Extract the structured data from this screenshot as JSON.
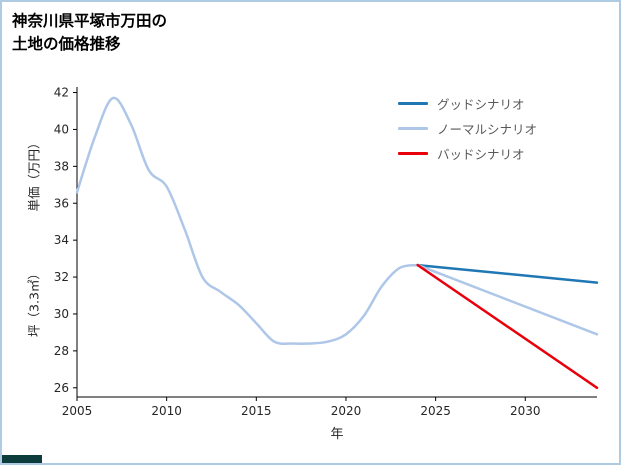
{
  "title": {
    "line1": "神奈川県平塚市万田の",
    "line2": "土地の価格推移"
  },
  "chart_data": {
    "type": "line",
    "title": "神奈川県平塚市万田の土地の価格推移",
    "xlabel": "年",
    "ylabel_line1": "単価（万円）",
    "ylabel_line2": "坪（3.3㎡）",
    "xlim": [
      2005,
      2034
    ],
    "ylim": [
      25.5,
      42.3
    ],
    "xticks": [
      2005,
      2010,
      2015,
      2020,
      2025,
      2030
    ],
    "yticks": [
      26,
      28,
      30,
      32,
      34,
      36,
      38,
      40,
      42
    ],
    "grid": false,
    "legend_position": "upper right",
    "legend": [
      {
        "label": "グッドシナリオ",
        "color": "#1f77b4"
      },
      {
        "label": "ノーマルシナリオ",
        "color": "#aec7e8"
      },
      {
        "label": "バッドシナリオ",
        "color": "#e8000b"
      }
    ],
    "series": [
      {
        "name": "historical",
        "color": "#aec7e8",
        "smooth": true,
        "x": [
          2005,
          2006,
          2007,
          2008,
          2009,
          2010,
          2011,
          2012,
          2013,
          2014,
          2015,
          2016,
          2017,
          2018,
          2019,
          2020,
          2021,
          2022,
          2023,
          2024
        ],
        "values": [
          36.6,
          39.6,
          41.7,
          40.3,
          37.8,
          36.9,
          34.6,
          32.0,
          31.2,
          30.5,
          29.5,
          28.5,
          28.4,
          28.4,
          28.5,
          28.9,
          29.9,
          31.5,
          32.5,
          32.65
        ]
      },
      {
        "name": "good-scenario",
        "color": "#1f77b4",
        "smooth": false,
        "x": [
          2024,
          2034
        ],
        "values": [
          32.65,
          31.7
        ]
      },
      {
        "name": "normal-scenario",
        "color": "#aec7e8",
        "smooth": false,
        "x": [
          2024,
          2034
        ],
        "values": [
          32.65,
          28.9
        ]
      },
      {
        "name": "bad-scenario",
        "color": "#e8000b",
        "smooth": false,
        "x": [
          2024,
          2034
        ],
        "values": [
          32.65,
          26.0
        ]
      }
    ]
  },
  "frame": {
    "border_color": "#aecbe3",
    "corner_mark_color": "#0d3c3c"
  }
}
